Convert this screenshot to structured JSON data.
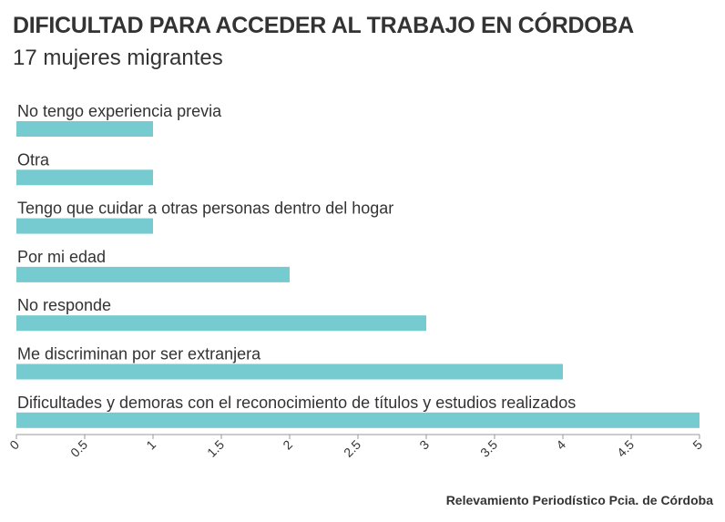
{
  "title": "DIFICULTAD PARA ACCEDER AL TRABAJO EN CÓRDOBA",
  "subtitle": "17 mujeres migrantes",
  "source": "Relevamiento Periodístico Pcia. de Córdoba",
  "colors": {
    "bar": "#76cbd1",
    "text": "#333333",
    "axis": "#999999"
  },
  "chart_data": {
    "type": "bar",
    "orientation": "horizontal",
    "categories": [
      "No tengo experiencia previa",
      "Otra",
      "Tengo que cuidar a otras personas dentro del hogar",
      "Por mi edad",
      "No responde",
      "Me discriminan por ser extranjera",
      "Dificultades y demoras con el reconocimiento de títulos y estudios realizados"
    ],
    "values": [
      1,
      1,
      1,
      2,
      3,
      4,
      5
    ],
    "xlim": [
      0,
      5
    ],
    "xticks": [
      "0",
      "0.5",
      "1",
      "1.5",
      "2",
      "2.5",
      "3",
      "3.5",
      "4",
      "4.5",
      "5"
    ],
    "title": "DIFICULTAD PARA ACCEDER AL TRABAJO EN CÓRDOBA",
    "subtitle": "17 mujeres migrantes",
    "xlabel": "",
    "ylabel": ""
  }
}
